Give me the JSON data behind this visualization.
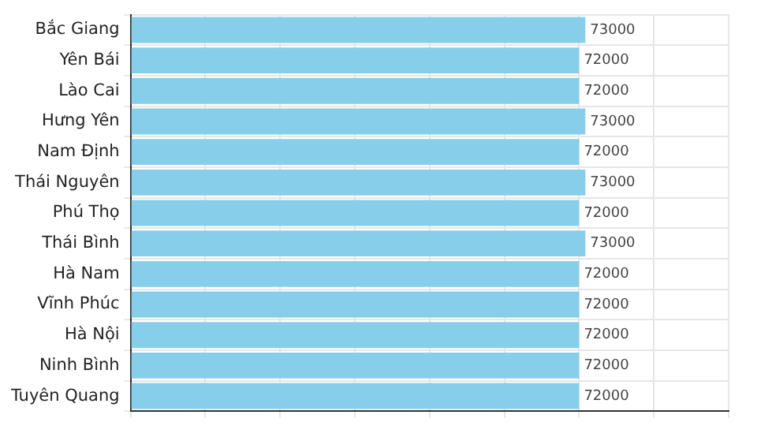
{
  "chart_data": {
    "type": "bar",
    "orientation": "horizontal",
    "categories": [
      "Bắc Giang",
      "Yên Bái",
      "Lào Cai",
      "Hưng Yên",
      "Nam Định",
      "Thái Nguyên",
      "Phú Thọ",
      "Thái Bình",
      "Hà Nam",
      "Vĩnh Phúc",
      "Hà Nội",
      "Ninh Bình",
      "Tuyên Quang"
    ],
    "values": [
      73000,
      72000,
      72000,
      73000,
      72000,
      73000,
      72000,
      73000,
      72000,
      72000,
      72000,
      72000,
      72000
    ],
    "color": "#87ceeb",
    "data_labels": true,
    "xlim": [
      0,
      96000
    ],
    "xticks": [
      {
        "value": 0,
        "label": null
      },
      {
        "value": 12000,
        "label": null
      },
      {
        "value": 24000,
        "label": null
      },
      {
        "value": 36000,
        "label": null
      },
      {
        "value": 48000,
        "label": null
      },
      {
        "value": 60000,
        "label": null
      },
      {
        "value": 72000,
        "label": null
      },
      {
        "value": 84000,
        "label": null
      },
      {
        "value": 96000,
        "label": null
      }
    ],
    "grid": true,
    "tick_labels": "y"
  }
}
